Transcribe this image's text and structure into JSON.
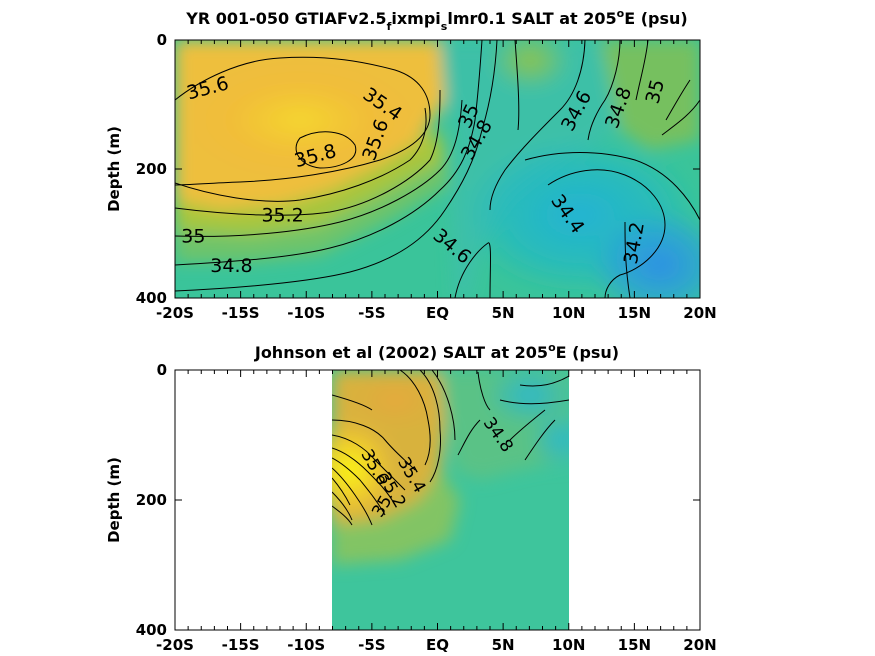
{
  "chart_data": [
    {
      "type": "heatmap",
      "title_parts": {
        "pre": "YR 001-050 GTIAFv2.5",
        "sub1": "f",
        "mid": "ixmpi",
        "sub2": "s",
        "post": "lmr0.1 SALT at 205",
        "sup": "o",
        "end": "E (psu)"
      },
      "xlabel": "",
      "ylabel": "Depth (m)",
      "x_tick_labels": [
        "-20S",
        "-15S",
        "-10S",
        "-5S",
        "EQ",
        "5N",
        "10N",
        "15N",
        "20N"
      ],
      "x_ticks": [
        -20,
        -15,
        -10,
        -5,
        0,
        5,
        10,
        15,
        20
      ],
      "xlim": [
        -20,
        20
      ],
      "y_tick_labels": [
        "0",
        "200",
        "400"
      ],
      "y_ticks": [
        0,
        200,
        400
      ],
      "ylim": [
        0,
        400
      ],
      "y_reversed": true,
      "contour_labels": [
        {
          "text": "35.6",
          "x": -17.5,
          "y": 75,
          "rot": -15
        },
        {
          "text": "35.4",
          "x": -4.2,
          "y": 100,
          "rot": 35
        },
        {
          "text": "35.8",
          "x": -9.3,
          "y": 180,
          "rot": -15
        },
        {
          "text": "35.6",
          "x": -4.7,
          "y": 155,
          "rot": -70
        },
        {
          "text": "35",
          "x": 2.4,
          "y": 118,
          "rot": -65
        },
        {
          "text": "34.8",
          "x": 3.0,
          "y": 155,
          "rot": -60
        },
        {
          "text": "34.6",
          "x": 10.6,
          "y": 110,
          "rot": -62
        },
        {
          "text": "34.8",
          "x": 13.8,
          "y": 105,
          "rot": -70
        },
        {
          "text": "35",
          "x": 16.6,
          "y": 80,
          "rot": -75
        },
        {
          "text": "35.2",
          "x": -11.8,
          "y": 272,
          "rot": 0
        },
        {
          "text": "35",
          "x": -18.6,
          "y": 305,
          "rot": 0
        },
        {
          "text": "34.8",
          "x": -15.7,
          "y": 350,
          "rot": 0
        },
        {
          "text": "34.6",
          "x": 1.1,
          "y": 320,
          "rot": 40
        },
        {
          "text": "34.4",
          "x": 9.9,
          "y": 270,
          "rot": 55
        },
        {
          "text": "34.2",
          "x": 15.0,
          "y": 315,
          "rot": -80
        }
      ]
    },
    {
      "type": "heatmap",
      "title_parts": {
        "pre": "Johnson et al (2002) SALT at 205",
        "sup": "o",
        "end": "E (psu)"
      },
      "xlabel": "",
      "ylabel": "Depth (m)",
      "x_tick_labels": [
        "-20S",
        "-15S",
        "-10S",
        "-5S",
        "EQ",
        "5N",
        "10N",
        "15N",
        "20N"
      ],
      "x_ticks": [
        -20,
        -15,
        -10,
        -5,
        0,
        5,
        10,
        15,
        20
      ],
      "xlim": [
        -20,
        20
      ],
      "y_tick_labels": [
        "0",
        "200",
        "400"
      ],
      "y_ticks": [
        0,
        200,
        400
      ],
      "ylim": [
        0,
        400
      ],
      "y_reversed": true,
      "data_extent_x": [
        -8,
        10
      ],
      "contour_labels": [
        {
          "text": "34.8",
          "x": 4.6,
          "y": 100,
          "rot": 55
        },
        {
          "text": "35.4",
          "x": -2.0,
          "y": 162,
          "rot": 60
        },
        {
          "text": "35.6",
          "x": -4.8,
          "y": 150,
          "rot": 60
        },
        {
          "text": "35.2",
          "x": -3.5,
          "y": 185,
          "rot": 60
        },
        {
          "text": "35",
          "x": -4.2,
          "y": 210,
          "rot": -60
        }
      ]
    }
  ]
}
